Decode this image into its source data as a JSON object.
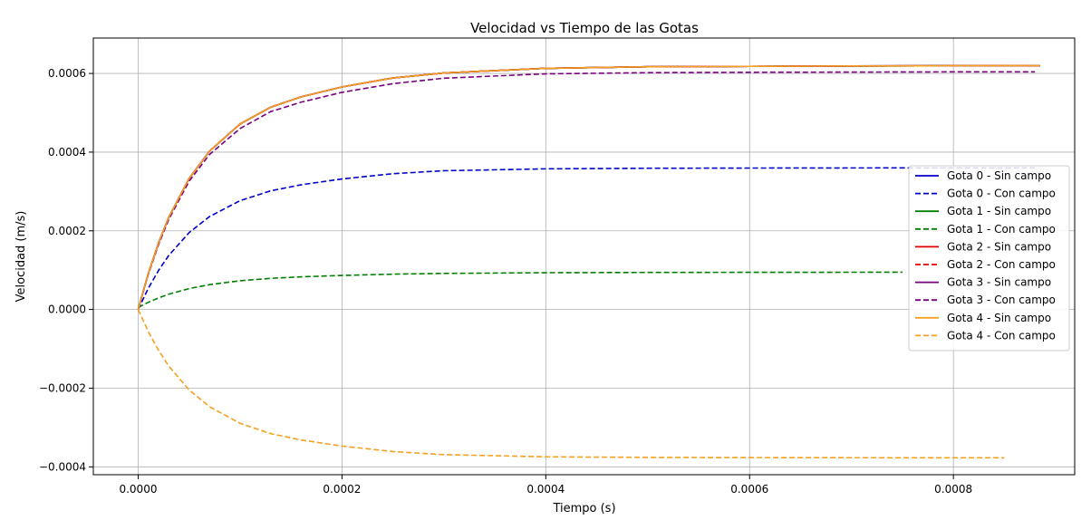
{
  "chart_data": {
    "type": "line",
    "title": "Velocidad vs Tiempo de las Gotas",
    "xlabel": "Tiempo (s)",
    "ylabel": "Velocidad (m/s)",
    "xlim": [
      -4.4e-05,
      0.000919
    ],
    "ylim": [
      -0.00042,
      0.00069
    ],
    "grid": true,
    "legend_position": "center-right",
    "x_ticks": [
      0.0,
      0.0002,
      0.0004,
      0.0006,
      0.0008
    ],
    "x_tick_labels": [
      "0.0000",
      "0.0002",
      "0.0004",
      "0.0006",
      "0.0008"
    ],
    "y_ticks": [
      -0.0004,
      -0.0002,
      0.0,
      0.0002,
      0.0004,
      0.0006
    ],
    "y_tick_labels": [
      "−0.0004",
      "−0.0002",
      "0.0000",
      "0.0002",
      "0.0004",
      "0.0006"
    ],
    "series": [
      {
        "name": "Gota 0 - Sin campo",
        "color": "#0000cc",
        "style": "solid",
        "x": [
          0,
          1e-05,
          2e-05,
          3e-05,
          5e-05,
          7e-05,
          0.0001,
          0.00013,
          0.00016,
          0.0002,
          0.00025,
          0.0003,
          0.0004,
          0.0005,
          0.0006,
          0.0007,
          0.0008,
          0.000885
        ],
        "y": [
          0,
          9.22e-05,
          0.0001694,
          0.0002341,
          0.0003331,
          0.0004026,
          0.0004715,
          0.0005142,
          0.0005406,
          0.0005657,
          0.0005886,
          0.0006013,
          0.000613,
          0.000617,
          0.000618,
          0.000619,
          0.0006195,
          0.00062
        ]
      },
      {
        "name": "Gota 0 - Con campo",
        "color": "#0000cc",
        "style": "dashed",
        "x": [
          0,
          1e-05,
          2e-05,
          3e-05,
          5e-05,
          7e-05,
          0.0001,
          0.00013,
          0.00016,
          0.0002,
          0.00025,
          0.0003,
          0.0004,
          0.0005,
          0.0006,
          0.0007,
          0.0008,
          0.00088
        ],
        "y": [
          0,
          5.42e-05,
          9.93e-05,
          0.0001373,
          0.0001954,
          0.0002362,
          0.0002766,
          0.0003016,
          0.0003171,
          0.0003318,
          0.0003452,
          0.0003527,
          0.0003575,
          0.000359,
          0.0003595,
          0.0003598,
          0.00036,
          0.00036
        ]
      },
      {
        "name": "Gota 1 - Sin campo",
        "color": "#007f00",
        "style": "solid",
        "x": [
          0,
          1e-05,
          2e-05,
          3e-05,
          5e-05,
          7e-05,
          0.0001,
          0.00013,
          0.00016,
          0.0002,
          0.00025,
          0.0003,
          0.0004,
          0.0005,
          0.0006,
          0.0007,
          0.0008,
          0.000885
        ],
        "y": [
          0,
          9.22e-05,
          0.0001694,
          0.0002341,
          0.0003331,
          0.0004026,
          0.0004715,
          0.0005142,
          0.0005406,
          0.0005657,
          0.0005886,
          0.0006013,
          0.000613,
          0.000617,
          0.000618,
          0.000619,
          0.0006195,
          0.00062
        ]
      },
      {
        "name": "Gota 1 - Con campo",
        "color": "#007f00",
        "style": "dashed",
        "x": [
          0,
          1e-05,
          2e-05,
          3e-05,
          5e-05,
          7e-05,
          0.0001,
          0.00013,
          0.00016,
          0.0002,
          0.00025,
          0.0003,
          0.0004,
          0.0005,
          0.0006,
          0.0007,
          0.00075
        ],
        "y": [
          5e-06,
          1.83e-05,
          2.94e-05,
          3.88e-05,
          5.31e-05,
          6.31e-05,
          7.3e-05,
          7.92e-05,
          8.3e-05,
          8.66e-05,
          8.98e-05,
          9.17e-05,
          9.35e-05,
          9.42e-05,
          9.45e-05,
          9.47e-05,
          9.48e-05
        ]
      },
      {
        "name": "Gota 2 - Sin campo",
        "color": "#e00000",
        "style": "solid",
        "x": [
          0,
          1e-05,
          2e-05,
          3e-05,
          5e-05,
          7e-05,
          0.0001,
          0.00013,
          0.00016,
          0.0002,
          0.00025,
          0.0003,
          0.0004,
          0.0005,
          0.0006,
          0.0007,
          0.0008,
          0.000885
        ],
        "y": [
          0,
          9.22e-05,
          0.0001694,
          0.0002341,
          0.0003331,
          0.0004026,
          0.0004715,
          0.0005142,
          0.0005406,
          0.0005657,
          0.0005886,
          0.0006013,
          0.000613,
          0.000617,
          0.000618,
          0.000619,
          0.0006195,
          0.00062
        ]
      },
      {
        "name": "Gota 2 - Con campo",
        "color": "#e00000",
        "style": "dashed",
        "x": [
          0,
          1e-05,
          2e-05,
          3e-05,
          5e-05,
          7e-05,
          0.0001,
          0.00013,
          0.00016,
          0.0002,
          0.00025,
          0.0003,
          0.0004,
          0.0005,
          0.0006,
          0.0007,
          0.0008,
          0.000885
        ],
        "y": [
          0,
          9.22e-05,
          0.0001694,
          0.0002341,
          0.0003331,
          0.0004026,
          0.0004715,
          0.0005142,
          0.0005406,
          0.0005657,
          0.0005886,
          0.0006013,
          0.000613,
          0.000617,
          0.000618,
          0.000619,
          0.0006195,
          0.00062
        ]
      },
      {
        "name": "Gota 3 - Sin campo",
        "color": "#7a0080",
        "style": "solid",
        "x": [
          0,
          1e-05,
          2e-05,
          3e-05,
          5e-05,
          7e-05,
          0.0001,
          0.00013,
          0.00016,
          0.0002,
          0.00025,
          0.0003,
          0.0004,
          0.0005,
          0.0006,
          0.0007,
          0.0008,
          0.000885
        ],
        "y": [
          0,
          9.22e-05,
          0.0001694,
          0.0002341,
          0.0003331,
          0.0004026,
          0.0004715,
          0.0005142,
          0.0005406,
          0.0005657,
          0.0005886,
          0.0006013,
          0.000613,
          0.000617,
          0.000618,
          0.000619,
          0.0006195,
          0.00062
        ]
      },
      {
        "name": "Gota 3 - Con campo",
        "color": "#7a0080",
        "style": "dashed",
        "x": [
          0,
          1e-05,
          2e-05,
          3e-05,
          5e-05,
          7e-05,
          0.0001,
          0.00013,
          0.00016,
          0.0002,
          0.00025,
          0.0003,
          0.0004,
          0.0005,
          0.0006,
          0.0007,
          0.0008,
          0.00088
        ],
        "y": [
          0,
          9e-05,
          0.000165,
          0.000229,
          0.000326,
          0.000394,
          0.00046,
          0.000503,
          0.000527,
          0.000552,
          0.000574,
          0.000588,
          0.000599,
          0.000602,
          0.000603,
          0.0006035,
          0.000604,
          0.000604
        ]
      },
      {
        "name": "Gota 4 - Sin campo",
        "color": "#f5a020",
        "style": "solid",
        "x": [
          0,
          1e-05,
          2e-05,
          3e-05,
          5e-05,
          7e-05,
          0.0001,
          0.00013,
          0.00016,
          0.0002,
          0.00025,
          0.0003,
          0.0004,
          0.0005,
          0.0006,
          0.0007,
          0.0008,
          0.000885
        ],
        "y": [
          0,
          9.22e-05,
          0.0001694,
          0.0002341,
          0.0003331,
          0.0004026,
          0.0004715,
          0.0005142,
          0.0005406,
          0.0005657,
          0.0005886,
          0.0006013,
          0.000613,
          0.000617,
          0.000618,
          0.000619,
          0.0006195,
          0.00062
        ]
      },
      {
        "name": "Gota 4 - Con campo",
        "color": "#f5a020",
        "style": "dashed",
        "x": [
          0,
          1e-05,
          2e-05,
          3e-05,
          5e-05,
          7e-05,
          0.0001,
          0.00013,
          0.00016,
          0.0002,
          0.00025,
          0.0003,
          0.0004,
          0.0005,
          0.0006,
          0.0007,
          0.0008,
          0.00085
        ],
        "y": [
          0,
          -5.66e-05,
          -0.000104,
          -0.0001437,
          -0.0002045,
          -0.0002472,
          -0.0002894,
          -0.0003156,
          -0.0003318,
          -0.0003472,
          -0.0003612,
          -0.000369,
          -0.0003745,
          -0.000376,
          -0.0003765,
          -0.0003768,
          -0.000377,
          -0.000377
        ]
      }
    ]
  }
}
